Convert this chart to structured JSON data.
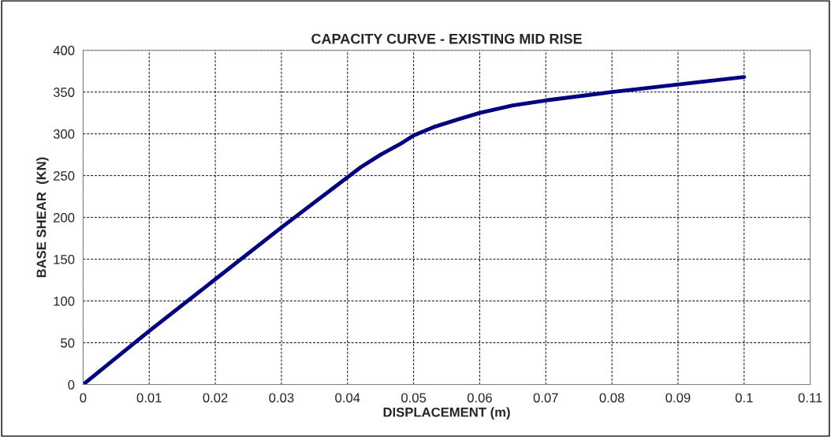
{
  "chart_data": {
    "type": "line",
    "title": "CAPACITY CURVE - EXISTING MID RISE",
    "xlabel": "DISPLACEMENT (m)",
    "ylabel": "BASE SHEAR  (KN)",
    "series": [
      {
        "color": "#000080",
        "x": [
          0,
          0.01,
          0.02,
          0.03,
          0.04,
          0.042,
          0.045,
          0.048,
          0.05,
          0.053,
          0.057,
          0.06,
          0.065,
          0.07,
          0.08,
          0.09,
          0.1
        ],
        "values": [
          0,
          64,
          126,
          188,
          248,
          260,
          275,
          288,
          298,
          308,
          318,
          325,
          334,
          340,
          350,
          359,
          368
        ]
      }
    ],
    "xlim": [
      0,
      0.11
    ],
    "xticks": [
      0,
      0.01,
      0.02,
      0.03,
      0.04,
      0.05,
      0.06,
      0.07,
      0.08,
      0.09,
      0.1,
      0.11
    ],
    "ylim": [
      0,
      400
    ],
    "yticks": [
      0,
      50,
      100,
      150,
      200,
      250,
      300,
      350,
      400
    ],
    "grid": true,
    "marker": "none",
    "line_style": "solid"
  }
}
